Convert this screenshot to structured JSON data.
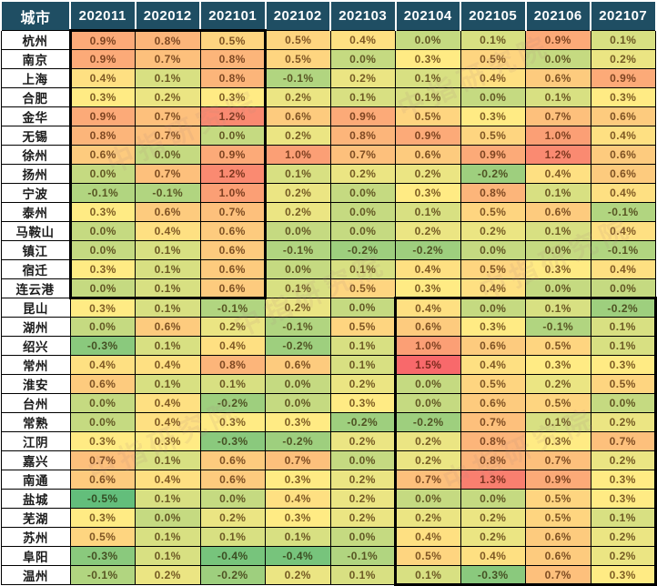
{
  "watermark": {
    "text": "中指研究院",
    "color": "#b08a80"
  },
  "table": {
    "header": {
      "city_label": "城市",
      "months": [
        "202011",
        "202012",
        "202101",
        "202102",
        "202103",
        "202104",
        "202105",
        "202106",
        "202107"
      ]
    },
    "rows": [
      {
        "city": "杭州",
        "values": [
          "0.9%",
          "0.8%",
          "0.5%",
          "0.5%",
          "0.4%",
          "0.0%",
          "0.1%",
          "0.9%",
          "0.1%"
        ]
      },
      {
        "city": "南京",
        "values": [
          "0.9%",
          "0.7%",
          "0.8%",
          "0.5%",
          "0.0%",
          "0.3%",
          "0.5%",
          "0.0%",
          "0.2%"
        ]
      },
      {
        "city": "上海",
        "values": [
          "0.4%",
          "0.1%",
          "0.8%",
          "-0.1%",
          "0.2%",
          "0.1%",
          "0.4%",
          "0.6%",
          "0.9%"
        ]
      },
      {
        "city": "合肥",
        "values": [
          "0.3%",
          "0.2%",
          "0.3%",
          "0.2%",
          "0.1%",
          "0.1%",
          "0.0%",
          "0.1%",
          "0.3%"
        ]
      },
      {
        "city": "金华",
        "values": [
          "0.9%",
          "0.7%",
          "1.2%",
          "0.6%",
          "0.9%",
          "0.5%",
          "0.3%",
          "0.7%",
          "0.6%"
        ]
      },
      {
        "city": "无锡",
        "values": [
          "0.8%",
          "0.7%",
          "0.0%",
          "0.2%",
          "0.8%",
          "0.9%",
          "0.5%",
          "1.0%",
          "0.4%"
        ]
      },
      {
        "city": "徐州",
        "values": [
          "0.6%",
          "0.0%",
          "0.9%",
          "1.0%",
          "0.7%",
          "0.6%",
          "0.9%",
          "1.2%",
          "0.6%"
        ]
      },
      {
        "city": "扬州",
        "values": [
          "0.0%",
          "0.7%",
          "1.2%",
          "0.1%",
          "0.2%",
          "0.2%",
          "-0.2%",
          "0.4%",
          "0.6%"
        ]
      },
      {
        "city": "宁波",
        "values": [
          "-0.1%",
          "-0.1%",
          "1.0%",
          "0.2%",
          "0.0%",
          "0.3%",
          "0.8%",
          "0.1%",
          "0.4%"
        ]
      },
      {
        "city": "泰州",
        "values": [
          "0.3%",
          "0.6%",
          "0.7%",
          "0.2%",
          "0.0%",
          "0.1%",
          "0.5%",
          "0.6%",
          "-0.1%"
        ]
      },
      {
        "city": "马鞍山",
        "values": [
          "0.0%",
          "0.4%",
          "0.6%",
          "0.0%",
          "0.0%",
          "0.2%",
          "0.2%",
          "0.1%",
          "0.4%"
        ]
      },
      {
        "city": "镇江",
        "values": [
          "0.0%",
          "0.1%",
          "0.6%",
          "-0.1%",
          "-0.2%",
          "-0.2%",
          "0.0%",
          "0.0%",
          "-0.1%"
        ]
      },
      {
        "city": "宿迁",
        "values": [
          "0.3%",
          "0.1%",
          "0.6%",
          "0.0%",
          "0.1%",
          "0.4%",
          "0.5%",
          "0.3%",
          "0.4%"
        ]
      },
      {
        "city": "连云港",
        "values": [
          "0.0%",
          "0.1%",
          "0.6%",
          "0.1%",
          "0.5%",
          "0.3%",
          "0.4%",
          "0.0%",
          "0.0%"
        ]
      },
      {
        "city": "昆山",
        "values": [
          "0.3%",
          "0.1%",
          "-0.1%",
          "0.2%",
          "0.0%",
          "0.4%",
          "0.0%",
          "0.1%",
          "-0.2%"
        ]
      },
      {
        "city": "湖州",
        "values": [
          "0.0%",
          "0.6%",
          "0.2%",
          "-0.1%",
          "0.5%",
          "0.6%",
          "0.3%",
          "-0.1%",
          "0.1%"
        ]
      },
      {
        "city": "绍兴",
        "values": [
          "-0.3%",
          "0.1%",
          "0.4%",
          "-0.2%",
          "0.1%",
          "1.0%",
          "0.6%",
          "0.5%",
          "0.1%"
        ]
      },
      {
        "city": "常州",
        "values": [
          "0.4%",
          "0.4%",
          "0.8%",
          "0.6%",
          "0.1%",
          "1.5%",
          "0.4%",
          "0.3%",
          "0.3%"
        ]
      },
      {
        "city": "淮安",
        "values": [
          "0.6%",
          "0.1%",
          "0.1%",
          "0.0%",
          "0.2%",
          "0.0%",
          "0.5%",
          "0.2%",
          "0.5%"
        ]
      },
      {
        "city": "台州",
        "values": [
          "0.0%",
          "0.4%",
          "-0.2%",
          "0.0%",
          "0.3%",
          "0.0%",
          "0.6%",
          "0.5%",
          "0.0%"
        ]
      },
      {
        "city": "常熟",
        "values": [
          "0.0%",
          "0.4%",
          "0.3%",
          "0.3%",
          "-0.2%",
          "-0.2%",
          "0.7%",
          "0.1%",
          "0.2%"
        ]
      },
      {
        "city": "江阴",
        "values": [
          "0.3%",
          "0.3%",
          "-0.3%",
          "-0.2%",
          "0.2%",
          "0.2%",
          "0.8%",
          "0.3%",
          "0.7%"
        ]
      },
      {
        "city": "嘉兴",
        "values": [
          "0.7%",
          "0.1%",
          "0.6%",
          "0.7%",
          "0.0%",
          "0.2%",
          "0.8%",
          "0.7%",
          "0.2%"
        ]
      },
      {
        "city": "南通",
        "values": [
          "0.6%",
          "0.4%",
          "0.6%",
          "0.3%",
          "0.2%",
          "0.7%",
          "1.3%",
          "0.9%",
          "0.3%"
        ]
      },
      {
        "city": "盐城",
        "values": [
          "-0.5%",
          "0.1%",
          "0.0%",
          "0.4%",
          "0.2%",
          "0.0%",
          "0.0%",
          "0.5%",
          "0.3%"
        ]
      },
      {
        "city": "芜湖",
        "values": [
          "0.3%",
          "0.0%",
          "0.2%",
          "0.3%",
          "0.2%",
          "0.2%",
          "0.2%",
          "0.5%",
          "0.1%"
        ]
      },
      {
        "city": "苏州",
        "values": [
          "0.5%",
          "0.1%",
          "0.1%",
          "0.1%",
          "0.0%",
          "0.4%",
          "0.2%",
          "0.6%",
          "0.2%"
        ]
      },
      {
        "city": "阜阳",
        "values": [
          "-0.3%",
          "0.1%",
          "-0.4%",
          "-0.4%",
          "-0.1%",
          "0.5%",
          "0.4%",
          "0.6%",
          "0.2%"
        ]
      },
      {
        "city": "温州",
        "values": [
          "-0.1%",
          "0.2%",
          "-0.2%",
          "0.2%",
          "0.1%",
          "0.1%",
          "-0.3%",
          "0.7%",
          "0.3%"
        ]
      }
    ],
    "colors": {
      "header_bg": "#1F4E63",
      "header_text": "#FFFFFF",
      "city_text": "#1c1c1c",
      "grid_border": "#000000"
    },
    "scale": {
      "min": -0.5,
      "mid": 0.3,
      "max": 1.5,
      "min_color": "#63BE7B",
      "mid_color": "#FFEB84",
      "max_color": "#F8696B"
    },
    "highlight_blocks": [
      {
        "row_start": 0,
        "row_end": 13,
        "col_start": 0,
        "col_end": 2
      },
      {
        "row_start": 14,
        "row_end": 28,
        "col_start": 5,
        "col_end": 8
      }
    ]
  }
}
